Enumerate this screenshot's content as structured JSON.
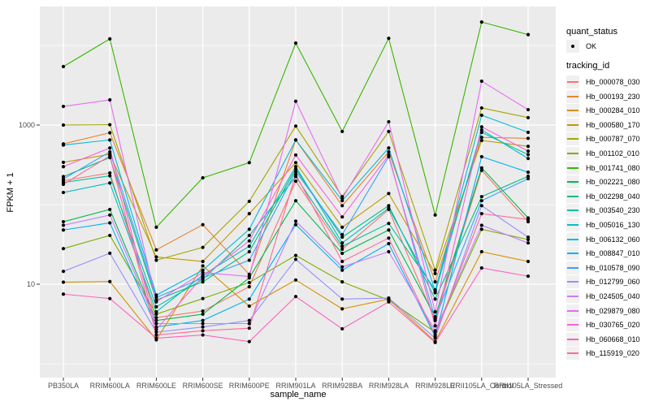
{
  "colors": {
    "background": "#FFFFFF",
    "panel_bg": "#EBEBEB",
    "grid": "#FFFFFF",
    "point": "#000000",
    "axis_text": "#4D4D4D",
    "axis_tick": "#333333",
    "legend_key_bg": "#F0F0F0"
  },
  "legend": {
    "quant_status": {
      "title": "quant_status",
      "items": [
        {
          "label": "OK",
          "marker": "black-point"
        }
      ]
    },
    "tracking": {
      "title": "tracking_id"
    }
  },
  "chart_data": {
    "type": "line",
    "title": "",
    "xlabel": "sample_name",
    "ylabel": "FPKM + 1",
    "y_scale": "log10",
    "ylim": [
      0.7,
      29000
    ],
    "grid": true,
    "legend_position": "right",
    "point_marker": "black-dot-all-vertices",
    "y_tick_labels": [
      "1000",
      "10"
    ],
    "y_tick_values": [
      1000,
      10
    ],
    "y_minor_values": [
      10000,
      100,
      1
    ],
    "categories": [
      "PB350LA",
      "RRIM600LA",
      "RRIM600LE",
      "RRIM600SE",
      "RRIM600PE",
      "RRIM901LA",
      "RRIM928BA",
      "RRIM928LA",
      "RRIM928LE",
      "RRII105LA_Control",
      "RRII105LA_Stressed"
    ],
    "series": [
      {
        "name": "Hb_000078_030",
        "color": "#F8766D",
        "values": [
          200,
          250,
          3.8,
          4.6,
          9.3,
          197,
          27.5,
          87,
          3.5,
          270,
          61
        ]
      },
      {
        "name": "Hb_000193_230",
        "color": "#EA8331",
        "values": [
          580,
          800,
          27,
          56,
          13.3,
          650,
          97,
          460,
          10.7,
          700,
          680
        ]
      },
      {
        "name": "Hb_000284_010",
        "color": "#D89000",
        "values": [
          10.6,
          10.8,
          2.0,
          17,
          5.3,
          11.3,
          4.9,
          6.5,
          1.9,
          25.6,
          19.3
        ]
      },
      {
        "name": "Hb_000580_170",
        "color": "#C09B00",
        "values": [
          340,
          430,
          22,
          19.3,
          77,
          337,
          52,
          138,
          13.6,
          640,
          540
        ]
      },
      {
        "name": "Hb_000787_070",
        "color": "#A3A500",
        "values": [
          1000,
          1010,
          20,
          29,
          110,
          970,
          126,
          830,
          15,
          1640,
          1240
        ]
      },
      {
        "name": "Hb_001102_010",
        "color": "#7CAE00",
        "values": [
          28,
          41,
          4.2,
          6.6,
          10.5,
          23,
          10.7,
          6.3,
          2.5,
          49,
          36.4
        ]
      },
      {
        "name": "Hb_001741_080",
        "color": "#39B600",
        "values": [
          5430,
          12100,
          52,
          217,
          337,
          10700,
          830,
          12300,
          74,
          19700,
          13700
        ]
      },
      {
        "name": "Hb_002221_080",
        "color": "#00BB4E",
        "values": [
          61,
          87,
          3.5,
          4.2,
          12,
          112,
          24.4,
          48,
          3.9,
          290,
          68
        ]
      },
      {
        "name": "Hb_002298_040",
        "color": "#00BF7D",
        "values": [
          225,
          390,
          6.3,
          10.7,
          25.6,
          280,
          39,
          97,
          6.5,
          126,
          227
        ]
      },
      {
        "name": "Hb_003540_230",
        "color": "#00C1A3",
        "values": [
          190,
          230,
          5.2,
          11.5,
          41,
          225,
          30,
          58,
          8.5,
          810,
          425
        ]
      },
      {
        "name": "Hb_005016_130",
        "color": "#00BFC4",
        "values": [
          142,
          187,
          4.5,
          13,
          30,
          300,
          33,
          90,
          7.8,
          870,
          380
        ]
      },
      {
        "name": "Hb_006132_060",
        "color": "#00BAE0",
        "values": [
          560,
          650,
          7.3,
          15,
          49,
          650,
          112,
          515,
          8.2,
          1330,
          810
        ]
      },
      {
        "name": "Hb_008847_010",
        "color": "#00B0F6",
        "values": [
          48,
          59,
          2.9,
          3.5,
          6.5,
          56,
          15,
          32.4,
          2.2,
          400,
          255
        ]
      },
      {
        "name": "Hb_010578_090",
        "color": "#35A2FF",
        "values": [
          210,
          460,
          6.8,
          12,
          20,
          260,
          42,
          400,
          3.7,
          112,
          212
        ]
      },
      {
        "name": "Hb_012799_060",
        "color": "#9590FF",
        "values": [
          14.5,
          24.5,
          2.5,
          2.9,
          3.5,
          20.5,
          6.5,
          6.7,
          2.1,
          97,
          39
        ]
      },
      {
        "name": "Hb_024505_040",
        "color": "#C77CFF",
        "values": [
          55,
          74,
          3.2,
          3.2,
          3.2,
          62,
          16.5,
          25.6,
          2.6,
          55,
          33
        ]
      },
      {
        "name": "Hb_029879_080",
        "color": "#E76BF3",
        "values": [
          1715,
          2070,
          6.0,
          14,
          12.5,
          1990,
          120,
          1100,
          4.5,
          3560,
          1560
        ]
      },
      {
        "name": "Hb_030765_020",
        "color": "#FA62DB",
        "values": [
          300,
          515,
          2.7,
          12.5,
          35,
          420,
          70,
          420,
          3.0,
          950,
          470
        ]
      },
      {
        "name": "Hb_060668_010",
        "color": "#FF62BC",
        "values": [
          7.5,
          6.6,
          2.1,
          2.3,
          1.9,
          7.0,
          2.75,
          6.0,
          1.85,
          16,
          12.6
        ]
      },
      {
        "name": "Hb_115919_020",
        "color": "#FF6A98",
        "values": [
          180,
          410,
          2.3,
          2.6,
          2.8,
          240,
          19.3,
          38,
          2.3,
          77,
          65
        ]
      }
    ]
  }
}
